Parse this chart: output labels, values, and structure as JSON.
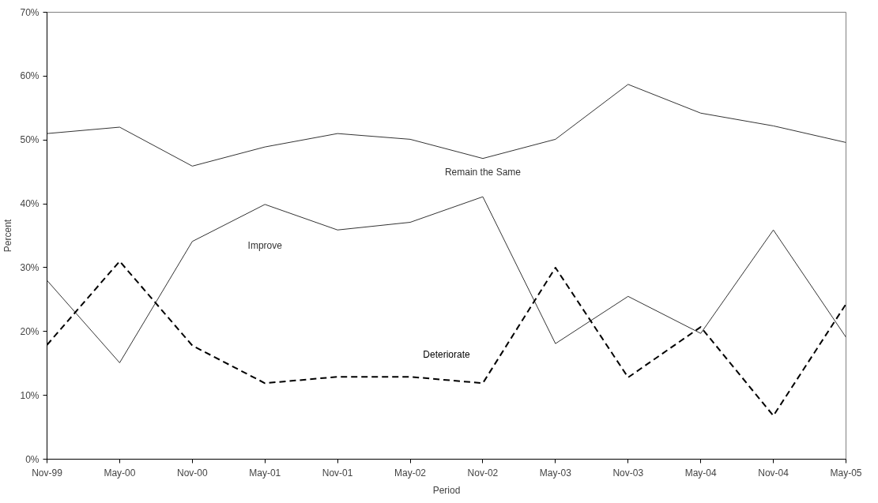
{
  "chart_data": {
    "type": "line",
    "xlabel": "Period",
    "ylabel": "Percent",
    "categories": [
      "Nov-99",
      "May-00",
      "Nov-00",
      "May-01",
      "Nov-01",
      "May-02",
      "Nov-02",
      "May-03",
      "Nov-03",
      "May-04",
      "Nov-04",
      "May-05"
    ],
    "series": [
      {
        "name": "Remain the Same",
        "color": "#333333",
        "line_style": "solid",
        "values": [
          51.0,
          52.0,
          45.9,
          48.9,
          51.0,
          50.1,
          47.1,
          50.1,
          58.7,
          54.2,
          52.2,
          49.6
        ]
      },
      {
        "name": "Improve",
        "color": "#333333",
        "line_style": "solid",
        "values": [
          28.0,
          15.1,
          34.1,
          39.9,
          35.9,
          37.1,
          41.1,
          18.1,
          25.5,
          19.7,
          35.9,
          19.1
        ]
      },
      {
        "name": "Deteriorate",
        "color": "#000000",
        "line_style": "dashed",
        "values": [
          17.9,
          31.0,
          17.8,
          11.9,
          12.9,
          12.9,
          11.9,
          30.0,
          12.8,
          20.7,
          6.8,
          24.3
        ]
      }
    ],
    "ylim": [
      0,
      70
    ],
    "yticks": [
      {
        "value": 0,
        "label": "0%"
      },
      {
        "value": 10,
        "label": "10%"
      },
      {
        "value": 20,
        "label": "20%"
      },
      {
        "value": 30,
        "label": "30%"
      },
      {
        "value": 40,
        "label": "40%"
      },
      {
        "value": 50,
        "label": "50%"
      },
      {
        "value": 60,
        "label": "60%"
      },
      {
        "value": 70,
        "label": "70%"
      }
    ],
    "grid": false,
    "legend": false,
    "marker": "none"
  }
}
